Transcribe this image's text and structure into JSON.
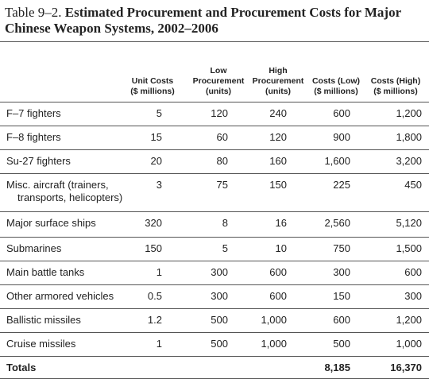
{
  "title": {
    "label": "Table 9–2.",
    "text": "Estimated Procurement and Procurement Costs for Major Chinese Weapon Systems, 2002–2006"
  },
  "table": {
    "header": [
      [],
      [
        "Unit Costs",
        "($ millions)"
      ],
      [
        "Low",
        "Procurement",
        "(units)"
      ],
      [
        "High",
        "Procurement",
        "(units)"
      ],
      [
        "Costs (Low)",
        "($ millions)"
      ],
      [
        "Costs (High)",
        "($ millions)"
      ]
    ],
    "rows": [
      [
        [
          "F–7 fighters"
        ],
        "5",
        "120",
        "240",
        "600",
        "1,200"
      ],
      [
        [
          "F–8 fighters"
        ],
        "15",
        "60",
        "120",
        "900",
        "1,800"
      ],
      [
        [
          "Su-27 fighters"
        ],
        "20",
        "80",
        "160",
        "1,600",
        "3,200"
      ],
      [
        [
          "Misc. aircraft (trainers,",
          "transports, helicopters)"
        ],
        "3",
        "75",
        "150",
        "225",
        "450"
      ],
      [
        [
          "Major surface ships"
        ],
        "320",
        "8",
        "16",
        "2,560",
        "5,120"
      ],
      [
        [
          "Submarines"
        ],
        "150",
        "5",
        "10",
        "750",
        "1,500"
      ],
      [
        [
          "Main battle tanks"
        ],
        "1",
        "300",
        "600",
        "300",
        "600"
      ],
      [
        [
          "Other armored vehicles"
        ],
        "0.5",
        "300",
        "600",
        "150",
        "300"
      ],
      [
        [
          "Ballistic missiles"
        ],
        "1.2",
        "500",
        "1,000",
        "600",
        "1,200"
      ],
      [
        [
          "Cruise missiles"
        ],
        "1",
        "500",
        "1,000",
        "500",
        "1,000"
      ]
    ],
    "totals": [
      "Totals",
      "",
      "",
      "",
      "8,185",
      "16,370"
    ]
  }
}
